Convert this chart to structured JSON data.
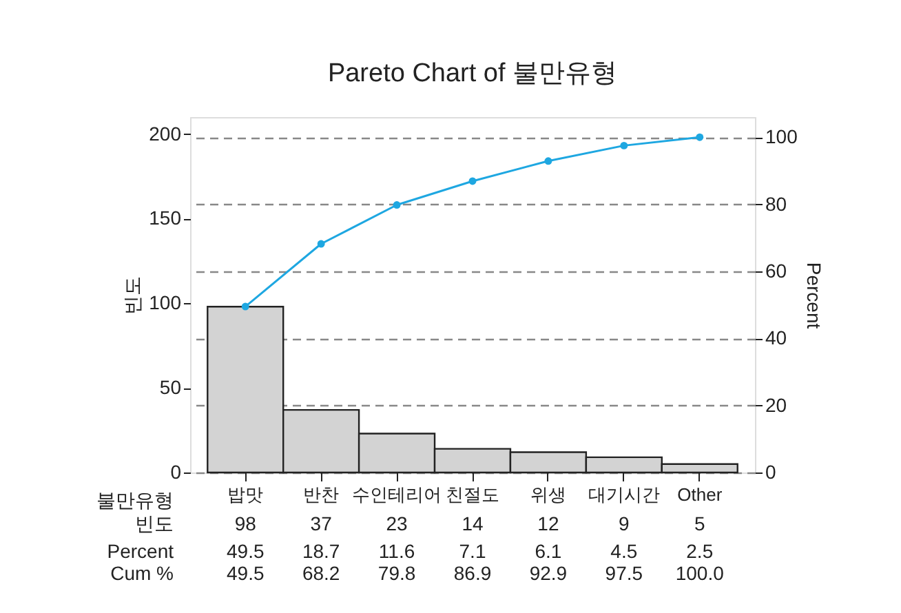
{
  "chart_data": {
    "type": "bar",
    "title": "Pareto Chart of 불만유형",
    "xlabel": "불만유형",
    "ylabel": "빈도",
    "y2label": "Percent",
    "categories": [
      "밥맛",
      "반찬",
      "수인테리어",
      "친절도",
      "위생",
      "대기시간",
      "Other"
    ],
    "series": [
      {
        "color": "#d3d3d3",
        "values": [
          98,
          37,
          23,
          14,
          12,
          9,
          5
        ],
        "value_labels": [
          "98",
          "37",
          "23",
          "14",
          "12",
          "9",
          "5"
        ]
      },
      {
        "type": "line",
        "axis": "y2",
        "color": "#1ea7e1",
        "values": [
          49.5,
          68.2,
          79.8,
          86.9,
          92.9,
          97.5,
          100.0
        ],
        "value_labels": [
          "49.5",
          "68.2",
          "79.8",
          "86.9",
          "92.9",
          "97.5",
          "100.0"
        ]
      }
    ],
    "ylim": [
      0,
      210
    ],
    "yticks": [
      0,
      50,
      100,
      150,
      200
    ],
    "y2lim": [
      0,
      106
    ],
    "y2ticks": [
      0,
      20,
      40,
      60,
      80,
      100
    ],
    "grid": "y2",
    "marker": "circle",
    "line_style": "solid",
    "annotations": [
      "빈도",
      "Percent",
      "Cum %",
      "49.5",
      "18.7",
      "11.6",
      "7.1",
      "6.1",
      "4.5",
      "2.5"
    ]
  }
}
